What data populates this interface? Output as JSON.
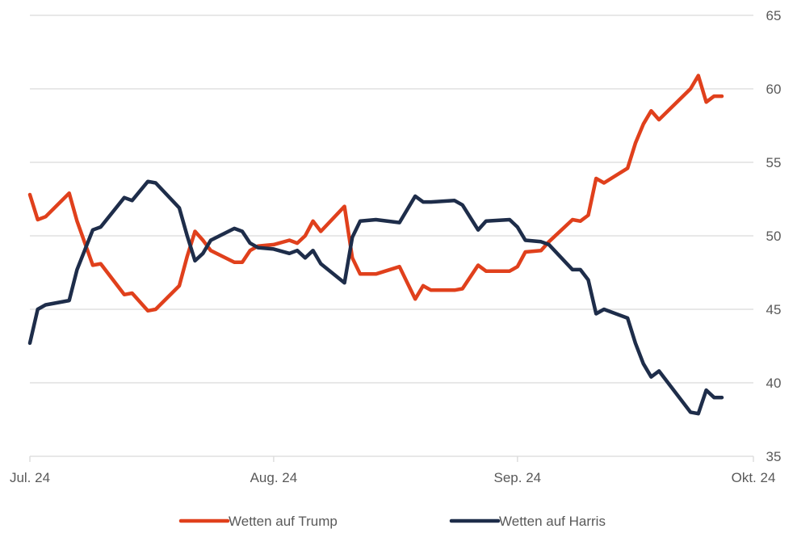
{
  "chart_data": {
    "type": "line",
    "x_ticks": [
      "Jul. 24",
      "Aug. 24",
      "Sep. 24",
      "Okt. 24"
    ],
    "y_ticks": [
      35,
      40,
      45,
      50,
      55,
      60,
      65
    ],
    "ylim": [
      35,
      65
    ],
    "xlim": [
      "2024-07-01",
      "2024-10-01"
    ],
    "grid": "horizontal",
    "y_axis_position": "right",
    "legend_position": "bottom",
    "series": [
      {
        "name": "Wetten auf Trump",
        "color": "#e0401c",
        "points": [
          [
            "2024-07-01",
            52.8
          ],
          [
            "2024-07-02",
            51.1
          ],
          [
            "2024-07-03",
            51.3
          ],
          [
            "2024-07-06",
            52.9
          ],
          [
            "2024-07-07",
            51.0
          ],
          [
            "2024-07-09",
            48.0
          ],
          [
            "2024-07-10",
            48.1
          ],
          [
            "2024-07-13",
            46.0
          ],
          [
            "2024-07-14",
            46.1
          ],
          [
            "2024-07-16",
            44.9
          ],
          [
            "2024-07-17",
            45.0
          ],
          [
            "2024-07-20",
            46.6
          ],
          [
            "2024-07-21",
            48.6
          ],
          [
            "2024-07-22",
            50.3
          ],
          [
            "2024-07-23",
            49.7
          ],
          [
            "2024-07-24",
            49.0
          ],
          [
            "2024-07-27",
            48.2
          ],
          [
            "2024-07-28",
            48.2
          ],
          [
            "2024-07-29",
            49.0
          ],
          [
            "2024-07-30",
            49.3
          ],
          [
            "2024-08-01",
            49.4
          ],
          [
            "2024-08-03",
            49.7
          ],
          [
            "2024-08-04",
            49.5
          ],
          [
            "2024-08-05",
            50.0
          ],
          [
            "2024-08-06",
            51.0
          ],
          [
            "2024-08-07",
            50.3
          ],
          [
            "2024-08-10",
            52.0
          ],
          [
            "2024-08-11",
            48.5
          ],
          [
            "2024-08-12",
            47.4
          ],
          [
            "2024-08-14",
            47.4
          ],
          [
            "2024-08-17",
            47.9
          ],
          [
            "2024-08-19",
            45.7
          ],
          [
            "2024-08-20",
            46.6
          ],
          [
            "2024-08-21",
            46.3
          ],
          [
            "2024-08-24",
            46.3
          ],
          [
            "2024-08-25",
            46.4
          ],
          [
            "2024-08-27",
            48.0
          ],
          [
            "2024-08-28",
            47.6
          ],
          [
            "2024-08-31",
            47.6
          ],
          [
            "2024-09-01",
            47.9
          ],
          [
            "2024-09-02",
            48.9
          ],
          [
            "2024-09-04",
            49.0
          ],
          [
            "2024-09-05",
            49.6
          ],
          [
            "2024-09-08",
            51.1
          ],
          [
            "2024-09-09",
            51.0
          ],
          [
            "2024-09-10",
            51.4
          ],
          [
            "2024-09-11",
            53.9
          ],
          [
            "2024-09-12",
            53.6
          ],
          [
            "2024-09-15",
            54.6
          ],
          [
            "2024-09-16",
            56.3
          ],
          [
            "2024-09-17",
            57.6
          ],
          [
            "2024-09-18",
            58.5
          ],
          [
            "2024-09-19",
            57.9
          ],
          [
            "2024-09-23",
            60.0
          ],
          [
            "2024-09-24",
            60.9
          ],
          [
            "2024-09-25",
            59.1
          ],
          [
            "2024-09-26",
            59.5
          ],
          [
            "2024-09-27",
            59.5
          ]
        ]
      },
      {
        "name": "Wetten auf Harris",
        "color": "#1e2d4a",
        "points": [
          [
            "2024-07-01",
            42.7
          ],
          [
            "2024-07-02",
            45.0
          ],
          [
            "2024-07-03",
            45.3
          ],
          [
            "2024-07-06",
            45.6
          ],
          [
            "2024-07-07",
            47.7
          ],
          [
            "2024-07-09",
            50.4
          ],
          [
            "2024-07-10",
            50.6
          ],
          [
            "2024-07-13",
            52.6
          ],
          [
            "2024-07-14",
            52.4
          ],
          [
            "2024-07-16",
            53.7
          ],
          [
            "2024-07-17",
            53.6
          ],
          [
            "2024-07-20",
            51.9
          ],
          [
            "2024-07-21",
            50.0
          ],
          [
            "2024-07-22",
            48.3
          ],
          [
            "2024-07-23",
            48.8
          ],
          [
            "2024-07-24",
            49.7
          ],
          [
            "2024-07-27",
            50.5
          ],
          [
            "2024-07-28",
            50.3
          ],
          [
            "2024-07-29",
            49.5
          ],
          [
            "2024-07-30",
            49.2
          ],
          [
            "2024-08-01",
            49.1
          ],
          [
            "2024-08-03",
            48.8
          ],
          [
            "2024-08-04",
            49.0
          ],
          [
            "2024-08-05",
            48.5
          ],
          [
            "2024-08-06",
            49.0
          ],
          [
            "2024-08-07",
            48.1
          ],
          [
            "2024-08-10",
            46.8
          ],
          [
            "2024-08-11",
            49.9
          ],
          [
            "2024-08-12",
            51.0
          ],
          [
            "2024-08-14",
            51.1
          ],
          [
            "2024-08-17",
            50.9
          ],
          [
            "2024-08-19",
            52.7
          ],
          [
            "2024-08-20",
            52.3
          ],
          [
            "2024-08-21",
            52.3
          ],
          [
            "2024-08-24",
            52.4
          ],
          [
            "2024-08-25",
            52.1
          ],
          [
            "2024-08-27",
            50.4
          ],
          [
            "2024-08-28",
            51.0
          ],
          [
            "2024-08-31",
            51.1
          ],
          [
            "2024-09-01",
            50.6
          ],
          [
            "2024-09-02",
            49.7
          ],
          [
            "2024-09-04",
            49.6
          ],
          [
            "2024-09-05",
            49.4
          ],
          [
            "2024-09-08",
            47.7
          ],
          [
            "2024-09-09",
            47.7
          ],
          [
            "2024-09-10",
            47.0
          ],
          [
            "2024-09-11",
            44.7
          ],
          [
            "2024-09-12",
            45.0
          ],
          [
            "2024-09-15",
            44.4
          ],
          [
            "2024-09-16",
            42.7
          ],
          [
            "2024-09-17",
            41.3
          ],
          [
            "2024-09-18",
            40.4
          ],
          [
            "2024-09-19",
            40.8
          ],
          [
            "2024-09-23",
            38.0
          ],
          [
            "2024-09-24",
            37.9
          ],
          [
            "2024-09-25",
            39.5
          ],
          [
            "2024-09-26",
            39.0
          ],
          [
            "2024-09-27",
            39.0
          ]
        ]
      }
    ]
  }
}
